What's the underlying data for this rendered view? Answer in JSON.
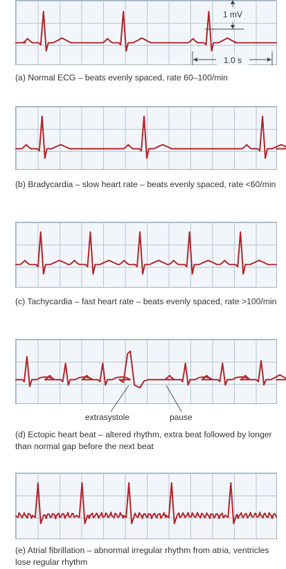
{
  "scale": {
    "amplitude_label": "1 mV",
    "time_label": "1.0 s"
  },
  "panels": [
    {
      "id": "a",
      "caption": "(a) Normal ECG – beats evenly spaced, rate 60–100/min"
    },
    {
      "id": "b",
      "caption": "(b) Bradycardia – slow heart rate – beats evenly spaced, rate <60/min"
    },
    {
      "id": "c",
      "caption": "(c) Tachycardia – fast heart rate – beats evenly spaced, rate >100/min"
    },
    {
      "id": "d",
      "caption": "(d) Ectopic heart beat – altered rhythm, extra beat followed by longer than normal gap before the next beat",
      "labels": {
        "extrasystole": "extrasystole",
        "pause": "pause"
      }
    },
    {
      "id": "e",
      "caption": "(e) Atrial fibrillation – abnormal irregular rhythm from atria, ventricles lose regular rhythm"
    }
  ],
  "colors": {
    "trace": "#b0242a",
    "grid": "#b5c4d3",
    "background": "#f2f6fa"
  }
}
